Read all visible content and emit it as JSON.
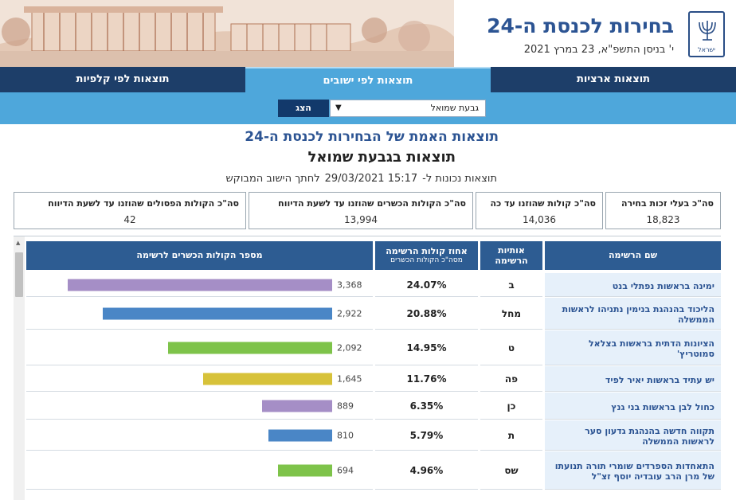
{
  "header": {
    "title": "בחירות לכנסת ה-24",
    "date": "י' בניסן התשפ\"א, 23 במרץ 2021",
    "emblem_text": "ישראל"
  },
  "nav": {
    "tabs": [
      {
        "label": "תוצאות ארציות"
      },
      {
        "label": "תוצאות לפי ישובים"
      },
      {
        "label": "תוצאות לפי קלפיות"
      }
    ]
  },
  "filter": {
    "selected": "גבעת שמואל",
    "show_label": "הצג"
  },
  "page": {
    "title": "תוצאות האמת של הבחירות לכנסת ה-24",
    "subtitle": "תוצאות בגבעת שמואל",
    "valid_prefix": "תוצאות נכונות ל-",
    "valid_time": "15:17 29/03/2021",
    "valid_suffix": "לחתך הישוב המבוקש"
  },
  "summary": [
    {
      "label": "סה\"כ בעלי זכות בחירה",
      "value": "18,823"
    },
    {
      "label": "סה\"כ קולות שהוזנו עד כה",
      "value": "14,036"
    },
    {
      "label": "סה\"כ הקולות הכשרים שהוזנו עד לשעת הדיווח",
      "value": "13,994"
    },
    {
      "label": "סה\"כ הקולות הפסולים שהוזנו עד לשעת הדיווח",
      "value": "42"
    }
  ],
  "table": {
    "headers": {
      "name": "שם הרשימה",
      "letters_1": "אותיות",
      "letters_2": "הרשימה",
      "pct_1": "אחוז קולות הרשימה",
      "pct_2": "מסה\"כ הקולות הכשרים",
      "votes": "מספר הקולות הכשרים לרשימה"
    },
    "rows": [
      {
        "name": "ימינה בראשות נפתלי בנט",
        "letters": "ב",
        "pct": "24.07%",
        "votes": "3,368",
        "value": 3368,
        "color": "#a58ec6"
      },
      {
        "name": "הליכוד בהנהגת בנימין נתניהו לראשות הממשלה",
        "letters": "מחל",
        "pct": "20.88%",
        "votes": "2,922",
        "value": 2922,
        "color": "#4a86c6"
      },
      {
        "name": "הציונות הדתית בראשות בצלאל סמוטריץ'",
        "letters": "ט",
        "pct": "14.95%",
        "votes": "2,092",
        "value": 2092,
        "color": "#7ec34a"
      },
      {
        "name": "יש עתיד בראשות יאיר לפיד",
        "letters": "פה",
        "pct": "11.76%",
        "votes": "1,645",
        "value": 1645,
        "color": "#d7c23a"
      },
      {
        "name": "כחול לבן בראשות בני גנץ",
        "letters": "כן",
        "pct": "6.35%",
        "votes": "889",
        "value": 889,
        "color": "#a58ec6"
      },
      {
        "name": "תקווה חדשה בהנהגת גדעון סער לראשות הממשלה",
        "letters": "ת",
        "pct": "5.79%",
        "votes": "810",
        "value": 810,
        "color": "#4a86c6"
      },
      {
        "name": "התאחדות הספרדים שומרי תורה תנועתו של מרן הרב עובדיה יוסף זצ\"ל",
        "letters": "שס",
        "pct": "4.96%",
        "votes": "694",
        "value": 694,
        "color": "#7ec34a"
      }
    ],
    "max_value": 3368
  }
}
